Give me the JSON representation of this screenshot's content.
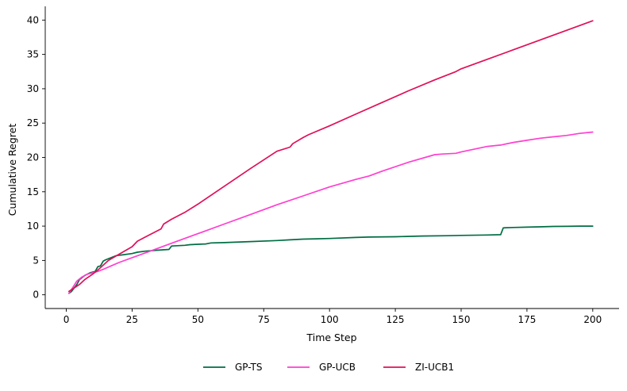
{
  "chart_data": {
    "type": "line",
    "title": "",
    "xlabel": "Time Step",
    "ylabel": "Cumulative Regret",
    "xlim": [
      -8,
      210
    ],
    "ylim": [
      -2,
      42
    ],
    "xticks": [
      0,
      25,
      50,
      75,
      100,
      125,
      150,
      175,
      200
    ],
    "yticks": [
      0,
      5,
      10,
      15,
      20,
      25,
      30,
      35,
      40
    ],
    "grid": false,
    "legend_position": "bottom-center",
    "series": [
      {
        "name": "GP-TS",
        "color": "#006d43",
        "x": [
          1,
          2,
          4,
          5,
          7,
          9,
          10,
          11,
          12,
          13,
          14,
          15,
          17,
          19,
          21,
          25,
          27,
          30,
          35,
          39,
          40,
          45,
          47,
          50,
          53,
          55,
          60,
          70,
          80,
          85,
          90,
          95,
          100,
          110,
          115,
          125,
          135,
          145,
          150,
          160,
          165,
          166,
          170,
          175,
          180,
          185,
          190,
          195,
          200
        ],
        "y": [
          0.2,
          0.5,
          1.5,
          2.2,
          2.8,
          3.2,
          3.3,
          3.4,
          4.1,
          4.2,
          4.9,
          5.1,
          5.4,
          5.7,
          5.8,
          6.0,
          6.2,
          6.35,
          6.5,
          6.6,
          7.1,
          7.2,
          7.3,
          7.35,
          7.4,
          7.55,
          7.6,
          7.75,
          7.9,
          8.0,
          8.1,
          8.15,
          8.2,
          8.35,
          8.4,
          8.45,
          8.55,
          8.6,
          8.65,
          8.7,
          8.75,
          9.75,
          9.8,
          9.85,
          9.9,
          9.95,
          9.97,
          10.0,
          10.0
        ]
      },
      {
        "name": "GP-UCB",
        "color": "#ff3fd0",
        "x": [
          1,
          2,
          4,
          6,
          8,
          10,
          12,
          14,
          17,
          20,
          25,
          30,
          40,
          50,
          60,
          70,
          80,
          90,
          100,
          110,
          115,
          120,
          130,
          140,
          143,
          148,
          150,
          155,
          160,
          165,
          170,
          175,
          180,
          185,
          190,
          195,
          200
        ],
        "y": [
          0.2,
          0.8,
          2.0,
          2.6,
          3.0,
          3.2,
          3.4,
          3.7,
          4.2,
          4.7,
          5.4,
          6.1,
          7.5,
          8.9,
          10.3,
          11.7,
          13.1,
          14.4,
          15.7,
          16.8,
          17.3,
          18.0,
          19.3,
          20.4,
          20.5,
          20.6,
          20.8,
          21.2,
          21.6,
          21.8,
          22.2,
          22.5,
          22.8,
          23.0,
          23.2,
          23.5,
          23.7
        ]
      },
      {
        "name": "ZI-UCB1",
        "color": "#e0105a",
        "x": [
          1,
          3,
          5,
          7,
          10,
          12,
          14,
          16,
          20,
          25,
          27,
          30,
          36,
          37,
          40,
          45,
          50,
          60,
          70,
          80,
          85,
          86,
          90,
          92,
          100,
          110,
          120,
          130,
          140,
          148,
          150,
          160,
          170,
          180,
          190,
          200
        ],
        "y": [
          0.5,
          1.0,
          1.5,
          2.2,
          3.0,
          3.6,
          4.3,
          5.0,
          5.9,
          7.0,
          7.8,
          8.4,
          9.6,
          10.3,
          11.0,
          12.0,
          13.2,
          15.8,
          18.4,
          20.9,
          21.5,
          22.0,
          22.9,
          23.3,
          24.6,
          26.3,
          28.0,
          29.7,
          31.3,
          32.5,
          32.9,
          34.3,
          35.7,
          37.1,
          38.5,
          39.9
        ]
      }
    ]
  }
}
